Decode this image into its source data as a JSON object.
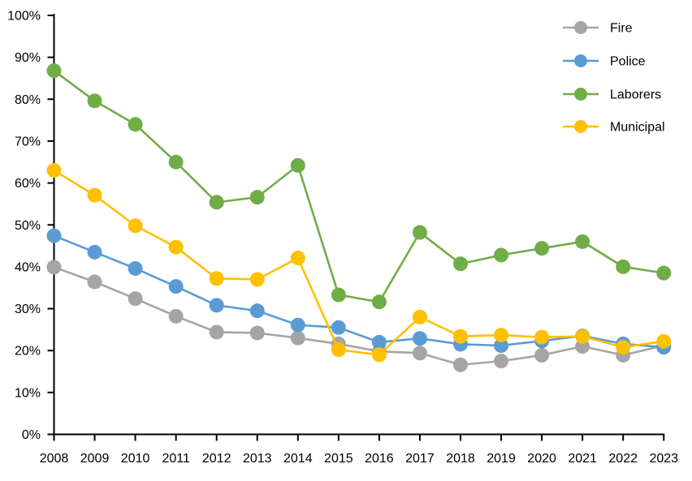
{
  "chart_data": {
    "type": "line",
    "title": "",
    "xlabel": "",
    "ylabel": "",
    "background": "#FFFFFF",
    "axis_color": "#000000",
    "text_color": "#000000",
    "grid": false,
    "legend_position": "top-right",
    "ylim": [
      0,
      100
    ],
    "y_tick_step": 10,
    "y_tick_labels": [
      "0%",
      "10%",
      "20%",
      "30%",
      "40%",
      "50%",
      "60%",
      "70%",
      "80%",
      "90%",
      "100%"
    ],
    "categories": [
      "2008",
      "2009",
      "2010",
      "2011",
      "2012",
      "2013",
      "2014",
      "2015",
      "2016",
      "2017",
      "2018",
      "2019",
      "2020",
      "2021",
      "2022",
      "2023"
    ],
    "series": [
      {
        "name": "Fire",
        "color": "#A5A5A5",
        "values": [
          39.9,
          36.4,
          32.4,
          28.2,
          24.4,
          24.2,
          23.0,
          21.6,
          19.8,
          19.4,
          16.6,
          17.5,
          18.9,
          21.0,
          18.9,
          21.2
        ]
      },
      {
        "name": "Police",
        "color": "#5B9BD5",
        "values": [
          47.4,
          43.5,
          39.6,
          35.3,
          30.8,
          29.5,
          26.1,
          25.5,
          22.0,
          22.9,
          21.5,
          21.2,
          22.3,
          23.5,
          21.6,
          20.8
        ]
      },
      {
        "name": "Laborers",
        "color": "#70AD47",
        "values": [
          86.8,
          79.6,
          74.0,
          65.0,
          55.4,
          56.6,
          64.2,
          33.3,
          31.6,
          48.2,
          40.7,
          42.8,
          44.4,
          46.0,
          40.0,
          38.5
        ]
      },
      {
        "name": "Municipal",
        "color": "#FFC000",
        "values": [
          63.0,
          57.1,
          49.8,
          44.7,
          37.2,
          37.0,
          42.1,
          20.2,
          19.0,
          28.0,
          23.4,
          23.7,
          23.2,
          23.4,
          20.8,
          22.2
        ]
      }
    ]
  }
}
